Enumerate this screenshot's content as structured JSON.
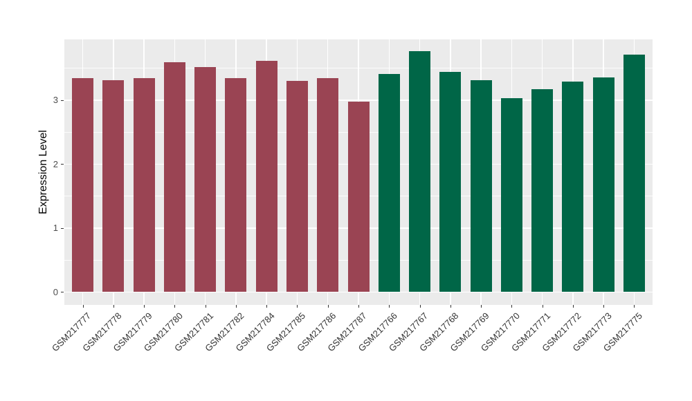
{
  "chart_data": {
    "type": "bar",
    "title": "",
    "xlabel": "",
    "ylabel": "Expression Level",
    "legend_position": "none",
    "panel_background": "#EBEBEB",
    "grid_color": "#FFFFFF",
    "tick_color": "#333333",
    "axis_text_color": "#4D4D4D",
    "group_colors": {
      "left_group": "#9A4453",
      "right_group": "#006647"
    },
    "ylim": [
      -0.2,
      3.95
    ],
    "yticks": [
      "0",
      "1",
      "2",
      "3"
    ],
    "ytick_values": [
      0,
      1,
      2,
      3
    ],
    "minor_grid_values": [
      0.5,
      1.5,
      2.5,
      3.5
    ],
    "grid": "major-and-minor-on",
    "categories": [
      "GSM217777",
      "GSM217778",
      "GSM217779",
      "GSM217780",
      "GSM217781",
      "GSM217782",
      "GSM217784",
      "GSM217785",
      "GSM217786",
      "GSM217787",
      "GSM217766",
      "GSM217767",
      "GSM217768",
      "GSM217769",
      "GSM217770",
      "GSM217771",
      "GSM217772",
      "GSM217773",
      "GSM217775"
    ],
    "values": [
      3.34,
      3.31,
      3.34,
      3.59,
      3.52,
      3.34,
      3.61,
      3.3,
      3.34,
      2.98,
      3.41,
      3.77,
      3.44,
      3.31,
      3.03,
      3.17,
      3.29,
      3.36,
      3.71
    ],
    "colors": [
      "#9A4453",
      "#9A4453",
      "#9A4453",
      "#9A4453",
      "#9A4453",
      "#9A4453",
      "#9A4453",
      "#9A4453",
      "#9A4453",
      "#9A4453",
      "#006647",
      "#006647",
      "#006647",
      "#006647",
      "#006647",
      "#006647",
      "#006647",
      "#006647",
      "#006647"
    ]
  }
}
